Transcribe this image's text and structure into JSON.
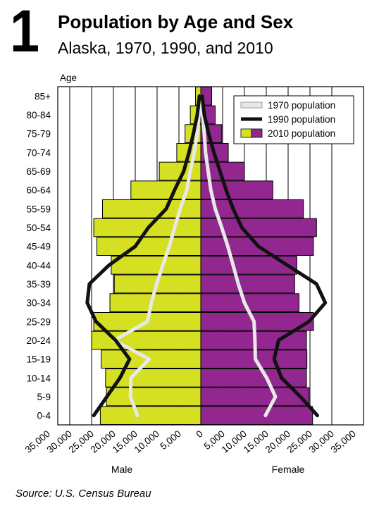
{
  "figure_number": "1",
  "title": "Population by Age and Sex",
  "subtitle": "Alaska, 1970, 1990, and 2010",
  "source": "Source: U.S. Census Bureau",
  "chart_data": {
    "type": "bar",
    "orientation": "horizontal-population-pyramid",
    "yaxis_label": "Age",
    "left_label": "Male",
    "right_label": "Female",
    "categories": [
      "85+",
      "80-84",
      "75-79",
      "70-74",
      "65-69",
      "60-64",
      "55-59",
      "50-54",
      "45-49",
      "40-44",
      "35-39",
      "30-34",
      "25-29",
      "20-24",
      "15-19",
      "10-14",
      "5-9",
      "0-4"
    ],
    "xlim": [
      -35000,
      35000
    ],
    "x_ticks": [
      -35000,
      -30000,
      -25000,
      -20000,
      -15000,
      -10000,
      -5000,
      0,
      5000,
      10000,
      15000,
      20000,
      25000,
      30000,
      35000
    ],
    "x_tick_labels": [
      "35,000",
      "30,000",
      "25,000",
      "20,000",
      "15,000",
      "10,000",
      "5,000",
      "0",
      "5,000",
      "10,000",
      "15,000",
      "20,000",
      "25,000",
      "30,000",
      "35,000"
    ],
    "grid": "vertical",
    "legend_position": "top-right",
    "series": [
      {
        "name": "2010 population",
        "style": "bars",
        "male": [
          1200,
          2400,
          3600,
          5500,
          9500,
          16000,
          22500,
          24500,
          23800,
          20500,
          19800,
          20800,
          24500,
          25000,
          22800,
          21800,
          21600,
          23000
        ],
        "female": [
          2500,
          3300,
          4800,
          6300,
          10000,
          16500,
          23500,
          26500,
          25800,
          22000,
          21500,
          22500,
          25800,
          24200,
          24300,
          24200,
          24800,
          25600
        ],
        "male_color": "#d4e021",
        "female_color": "#92278f"
      },
      {
        "name": "1990 population",
        "style": "line",
        "color": "#111111",
        "male": [
          300,
          800,
          1700,
          2700,
          3900,
          6000,
          7900,
          12000,
          15000,
          21000,
          25500,
          26000,
          24000,
          19500,
          16300,
          18500,
          21500,
          24500
        ],
        "female": [
          300,
          800,
          1800,
          3000,
          4400,
          5800,
          7400,
          9400,
          13200,
          19800,
          26500,
          28500,
          24800,
          17800,
          16800,
          18500,
          22800,
          26700
        ]
      },
      {
        "name": "1970 population",
        "style": "line",
        "color": "#e8e8e8",
        "male": [
          100,
          400,
          800,
          1500,
          2400,
          3200,
          4700,
          6000,
          7200,
          8700,
          10100,
          11300,
          12200,
          19800,
          11800,
          16000,
          16100,
          14500
        ],
        "female": [
          100,
          400,
          800,
          1100,
          1700,
          2300,
          3300,
          4800,
          6200,
          7400,
          8600,
          10000,
          12200,
          12400,
          12500,
          15100,
          17100,
          14800
        ]
      }
    ]
  }
}
